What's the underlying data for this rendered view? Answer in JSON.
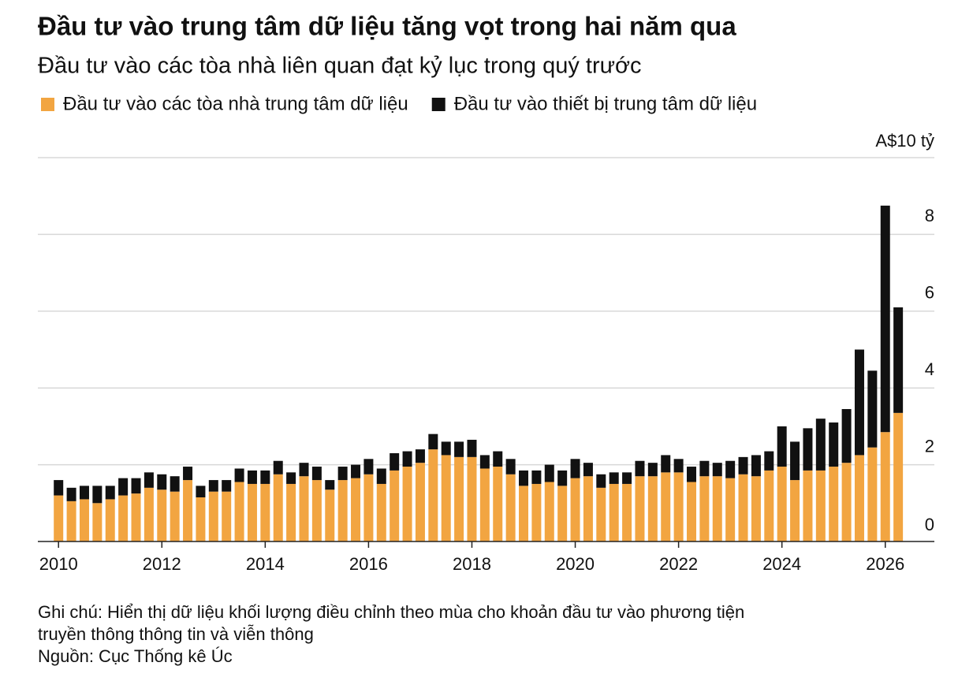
{
  "chart_data": {
    "type": "stacked-bar",
    "title": "Đầu tư vào trung tâm dữ liệu tăng vọt trong hai năm qua",
    "subtitle": "Đầu tư vào các tòa nhà liên quan đạt kỷ lục trong quý trước",
    "x": [
      2010,
      2010.25,
      2010.5,
      2010.75,
      2011,
      2011.25,
      2011.5,
      2011.75,
      2012,
      2012.25,
      2012.5,
      2012.75,
      2013,
      2013.25,
      2013.5,
      2013.75,
      2014,
      2014.25,
      2014.5,
      2014.75,
      2015,
      2015.25,
      2015.5,
      2015.75,
      2016,
      2016.25,
      2016.5,
      2016.75,
      2017,
      2017.25,
      2017.5,
      2017.75,
      2018,
      2018.25,
      2018.5,
      2018.75,
      2019,
      2019.25,
      2019.5,
      2019.75,
      2020,
      2020.25,
      2020.5,
      2020.75,
      2021,
      2021.25,
      2021.5,
      2021.75,
      2022,
      2022.25,
      2022.5,
      2022.75,
      2023,
      2023.25,
      2023.5,
      2023.75,
      2024,
      2024.25,
      2024.5,
      2024.75,
      2025,
      2025.25,
      2025.5,
      2025.75,
      2026,
      2026.25
    ],
    "series": [
      {
        "name": "Đầu tư vào các tòa nhà trung tâm dữ liệu",
        "color": "#f2a541",
        "values": [
          1.2,
          1.05,
          1.1,
          1.0,
          1.1,
          1.2,
          1.25,
          1.4,
          1.35,
          1.3,
          1.6,
          1.15,
          1.3,
          1.3,
          1.55,
          1.5,
          1.5,
          1.75,
          1.5,
          1.7,
          1.6,
          1.35,
          1.6,
          1.65,
          1.75,
          1.5,
          1.85,
          1.95,
          2.05,
          2.4,
          2.25,
          2.2,
          2.2,
          1.9,
          1.95,
          1.75,
          1.45,
          1.5,
          1.55,
          1.45,
          1.65,
          1.7,
          1.4,
          1.5,
          1.5,
          1.7,
          1.7,
          1.8,
          1.8,
          1.55,
          1.7,
          1.7,
          1.65,
          1.75,
          1.7,
          1.85,
          1.95,
          1.6,
          1.85,
          1.85,
          1.95,
          2.05,
          2.25,
          2.45,
          2.85,
          3.35
        ]
      },
      {
        "name": "Đầu tư vào thiết bị trung tâm dữ liệu",
        "color": "#111111",
        "values": [
          0.4,
          0.35,
          0.35,
          0.45,
          0.35,
          0.45,
          0.4,
          0.4,
          0.4,
          0.4,
          0.35,
          0.3,
          0.3,
          0.3,
          0.35,
          0.35,
          0.35,
          0.35,
          0.3,
          0.35,
          0.35,
          0.25,
          0.35,
          0.35,
          0.4,
          0.4,
          0.45,
          0.4,
          0.35,
          0.4,
          0.35,
          0.4,
          0.45,
          0.35,
          0.4,
          0.4,
          0.4,
          0.35,
          0.45,
          0.4,
          0.5,
          0.35,
          0.35,
          0.3,
          0.3,
          0.4,
          0.35,
          0.45,
          0.35,
          0.4,
          0.4,
          0.35,
          0.45,
          0.45,
          0.55,
          0.5,
          1.05,
          1.0,
          1.1,
          1.35,
          1.15,
          1.4,
          2.75,
          2.0,
          5.9,
          2.75
        ]
      }
    ],
    "xlim": [
      2009.6,
      2026.95
    ],
    "xticks": [
      2010,
      2012,
      2014,
      2016,
      2018,
      2020,
      2022,
      2024,
      2026
    ],
    "ylim": [
      0,
      10
    ],
    "yticks": [
      0,
      2,
      4,
      6,
      8,
      {
        "value": 10,
        "label": "A$10 tỷ"
      }
    ],
    "grid": true,
    "note": [
      "Ghi chú: Hiển thị dữ liệu khối lượng điều chỉnh theo mùa cho khoản đầu tư vào phương tiện",
      "truyền thông thông tin và viễn thông"
    ],
    "source": "Nguồn: Cục Thống kê Úc"
  }
}
